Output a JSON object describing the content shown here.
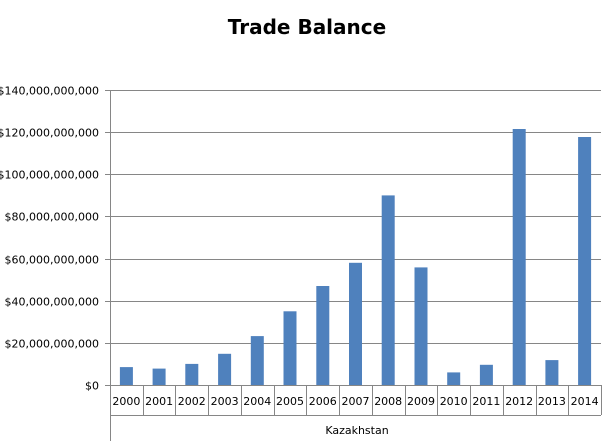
{
  "chart_data": {
    "type": "bar",
    "title": "Trade Balance",
    "group_label": "Kazakhstan",
    "categories": [
      "2000",
      "2001",
      "2002",
      "2003",
      "2004",
      "2005",
      "2006",
      "2007",
      "2008",
      "2009",
      "2010",
      "2011",
      "2012",
      "2013",
      "2014"
    ],
    "values": [
      8500000000,
      7800000000,
      10000000000,
      14800000000,
      23200000000,
      35000000000,
      47000000000,
      58000000000,
      90000000000,
      55800000000,
      6000000000,
      9600000000,
      121500000000,
      11800000000,
      117700000000
    ],
    "y_ticks": [
      {
        "value": 0,
        "label": "$0"
      },
      {
        "value": 20000000000,
        "label": "$20,000,000,000"
      },
      {
        "value": 40000000000,
        "label": "$40,000,000,000"
      },
      {
        "value": 60000000000,
        "label": "$60,000,000,000"
      },
      {
        "value": 80000000000,
        "label": "$80,000,000,000"
      },
      {
        "value": 100000000000,
        "label": "$100,000,000,000"
      },
      {
        "value": 120000000000,
        "label": "$120,000,000,000"
      },
      {
        "value": 140000000000,
        "label": "$140,000,000,000"
      }
    ],
    "ylim": [
      0,
      140000000000
    ],
    "grid": true,
    "legend": "none",
    "colors": {
      "bar": "#4f81bd",
      "grid": "#868686",
      "axis": "#868686"
    }
  }
}
